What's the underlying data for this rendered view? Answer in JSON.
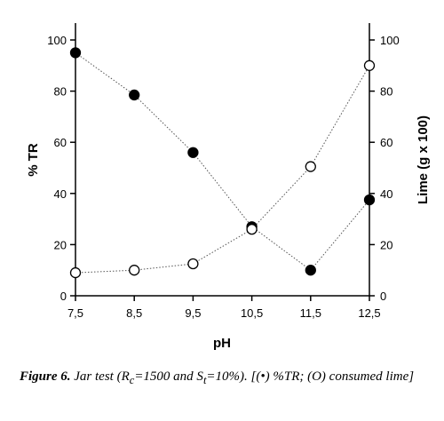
{
  "chart_data": {
    "type": "line",
    "xlabel": "pH",
    "ylabel_left": "% TR",
    "ylabel_right": "Lime (g x 100)",
    "x_ticks": [
      "7,5",
      "8,5",
      "9,5",
      "10,5",
      "11,5",
      "12,5"
    ],
    "y_ticks": [
      "0",
      "20",
      "40",
      "60",
      "80",
      "100"
    ],
    "x": [
      7.5,
      8.5,
      9.5,
      10.5,
      11.5,
      12.5
    ],
    "xlim": [
      7.5,
      12.5
    ],
    "ylim_left": [
      0,
      100
    ],
    "ylim_right": [
      0,
      100
    ],
    "grid": false,
    "series": [
      {
        "marker": "filled",
        "axis": "left",
        "values": [
          95,
          78.5,
          56,
          27,
          10,
          37.5
        ]
      },
      {
        "marker": "open",
        "axis": "right",
        "values": [
          9,
          10,
          12.5,
          26,
          50.5,
          90
        ]
      }
    ]
  },
  "caption": {
    "figure_label": "Figure 6.",
    "text_before_c": " Jar test (R",
    "sub_c": "c",
    "text_mid": "=1500 and S",
    "sub_t": "t",
    "text_after": "=10%). [(•) %TR; (O) consumed lime]"
  }
}
